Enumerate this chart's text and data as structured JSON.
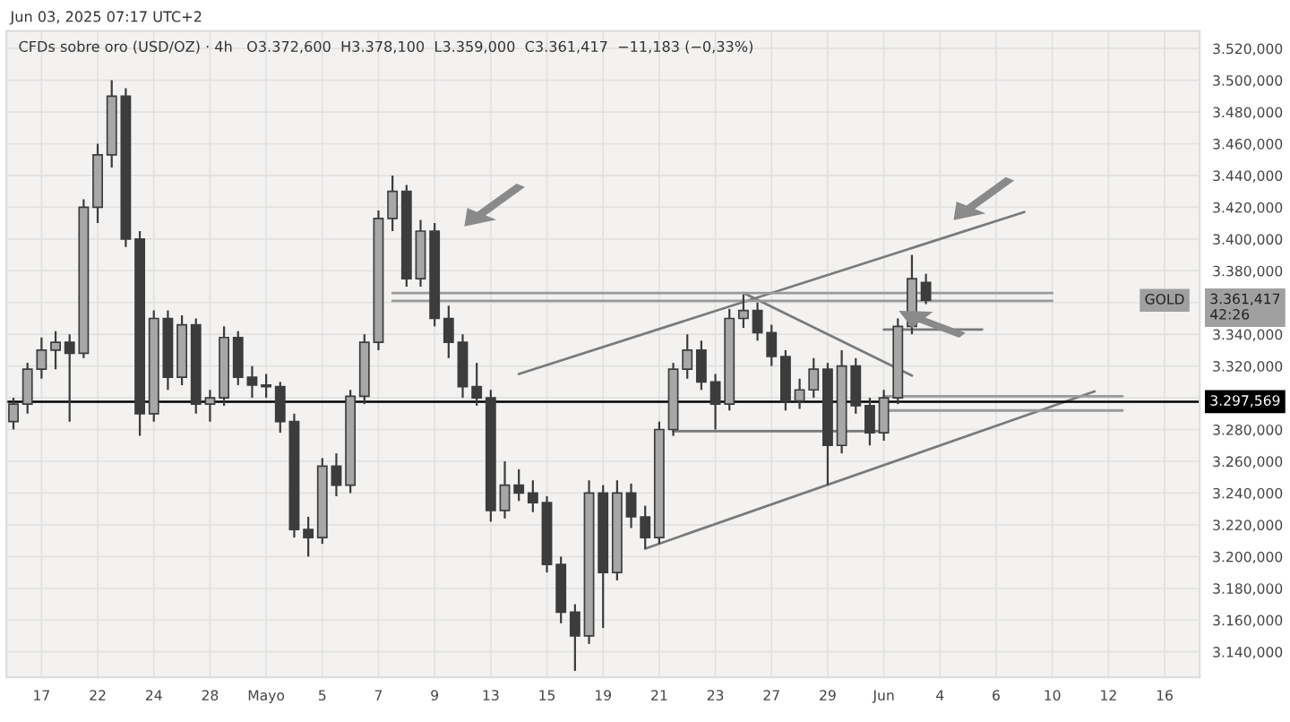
{
  "chart_data": {
    "type": "candlestick",
    "title": "CFDs sobre oro (USD/OZ) · 4h   O3.372,600  H3.378,100  L3.359,000  C3.361,417  −11,183 (−0,33%)",
    "subtitle": "Jun 03, 2025 07:17 UTC+2",
    "categories": [
      null,
      null,
      "17",
      null,
      null,
      null,
      "22",
      null,
      null,
      null,
      "24",
      null,
      null,
      null,
      "28",
      null,
      null,
      null,
      "Mayo",
      null,
      null,
      null,
      "5",
      null,
      null,
      null,
      "7",
      null,
      null,
      null,
      "9",
      null,
      null,
      null,
      "13",
      null,
      null,
      null,
      "15",
      null,
      null,
      null,
      "19",
      null,
      null,
      null,
      "21",
      null,
      null,
      null,
      "23",
      null,
      null,
      null,
      "27",
      null,
      null,
      null,
      "29",
      null,
      null,
      null,
      "Jun",
      null,
      null,
      null,
      "4",
      null,
      null,
      null,
      "6",
      null,
      null,
      null,
      "10",
      null,
      null,
      null,
      "12",
      null,
      null,
      null,
      "16",
      null,
      null
    ],
    "ohlc": [
      [
        3285,
        3300,
        3280,
        3296
      ],
      [
        3296,
        3322,
        3290,
        3318
      ],
      [
        3318,
        3338,
        3312,
        3330
      ],
      [
        3330,
        3342,
        3318,
        3335
      ],
      [
        3335,
        3340,
        3285,
        3328
      ],
      [
        3328,
        3425,
        3325,
        3420
      ],
      [
        3420,
        3460,
        3410,
        3453
      ],
      [
        3453,
        3500,
        3445,
        3490
      ],
      [
        3490,
        3495,
        3395,
        3400
      ],
      [
        3400,
        3405,
        3276,
        3290
      ],
      [
        3290,
        3355,
        3285,
        3350
      ],
      [
        3350,
        3355,
        3305,
        3313
      ],
      [
        3313,
        3352,
        3308,
        3346
      ],
      [
        3346,
        3350,
        3290,
        3296
      ],
      [
        3296,
        3305,
        3285,
        3300
      ],
      [
        3300,
        3345,
        3295,
        3338
      ],
      [
        3338,
        3342,
        3308,
        3313
      ],
      [
        3313,
        3320,
        3300,
        3308
      ],
      [
        3308,
        3315,
        3300,
        3307
      ],
      [
        3307,
        3310,
        3278,
        3285
      ],
      [
        3285,
        3290,
        3212,
        3217
      ],
      [
        3217,
        3225,
        3200,
        3212
      ],
      [
        3212,
        3262,
        3208,
        3257
      ],
      [
        3257,
        3265,
        3238,
        3245
      ],
      [
        3245,
        3305,
        3240,
        3301
      ],
      [
        3301,
        3340,
        3296,
        3335
      ],
      [
        3335,
        3418,
        3330,
        3413
      ],
      [
        3413,
        3440,
        3405,
        3430
      ],
      [
        3430,
        3434,
        3370,
        3375
      ],
      [
        3375,
        3412,
        3370,
        3405
      ],
      [
        3405,
        3410,
        3345,
        3350
      ],
      [
        3350,
        3358,
        3325,
        3335
      ],
      [
        3335,
        3340,
        3300,
        3307
      ],
      [
        3307,
        3322,
        3295,
        3300
      ],
      [
        3300,
        3305,
        3222,
        3229
      ],
      [
        3229,
        3260,
        3224,
        3245
      ],
      [
        3245,
        3255,
        3235,
        3240
      ],
      [
        3240,
        3248,
        3228,
        3234
      ],
      [
        3234,
        3238,
        3190,
        3195
      ],
      [
        3195,
        3200,
        3158,
        3165
      ],
      [
        3165,
        3170,
        3128,
        3150
      ],
      [
        3150,
        3248,
        3145,
        3240
      ],
      [
        3240,
        3245,
        3155,
        3190
      ],
      [
        3190,
        3248,
        3185,
        3240
      ],
      [
        3240,
        3246,
        3218,
        3225
      ],
      [
        3225,
        3232,
        3205,
        3212
      ],
      [
        3212,
        3285,
        3208,
        3280
      ],
      [
        3280,
        3322,
        3276,
        3318
      ],
      [
        3318,
        3340,
        3312,
        3330
      ],
      [
        3330,
        3336,
        3305,
        3310
      ],
      [
        3310,
        3315,
        3280,
        3296
      ],
      [
        3296,
        3356,
        3292,
        3350
      ],
      [
        3350,
        3365,
        3344,
        3355
      ],
      [
        3355,
        3360,
        3336,
        3341
      ],
      [
        3341,
        3346,
        3320,
        3326
      ],
      [
        3326,
        3330,
        3292,
        3298
      ],
      [
        3298,
        3312,
        3293,
        3305
      ],
      [
        3305,
        3325,
        3300,
        3318
      ],
      [
        3318,
        3322,
        3245,
        3270
      ],
      [
        3270,
        3330,
        3265,
        3320
      ],
      [
        3320,
        3325,
        3290,
        3295
      ],
      [
        3295,
        3300,
        3270,
        3278
      ],
      [
        3278,
        3305,
        3273,
        3300
      ],
      [
        3300,
        3350,
        3296,
        3345
      ],
      [
        3345,
        3390,
        3340,
        3375
      ],
      [
        3372.6,
        3378.1,
        3359,
        3361.417
      ],
      null,
      null,
      null,
      null,
      null,
      null,
      null,
      null,
      null,
      null,
      null,
      null,
      null,
      null,
      null,
      null,
      null,
      null,
      null
    ],
    "color": "#3c3c3c",
    "series": [
      {
        "type": "line",
        "color": "#7a7a7a",
        "values": [
          null,
          null,
          null,
          null,
          null,
          null,
          null,
          null,
          null,
          null,
          null,
          null,
          null,
          null,
          null,
          null,
          null,
          null,
          null,
          null,
          null,
          null,
          null,
          null,
          null,
          null,
          null,
          null,
          null,
          null,
          null,
          null,
          null,
          null,
          null,
          null,
          3315,
          null,
          null,
          null,
          null,
          null,
          null,
          null,
          null,
          null,
          null,
          null,
          null,
          null,
          null,
          null,
          null,
          null,
          null,
          null,
          null,
          null,
          null,
          null,
          null,
          null,
          null,
          null,
          null,
          null,
          null,
          null,
          null,
          null,
          null,
          null,
          3417,
          null,
          null,
          null,
          null,
          null,
          null,
          null,
          null,
          null,
          null,
          null,
          null
        ]
      },
      {
        "type": "line",
        "color": "#7a7a7a",
        "values": [
          null,
          null,
          null,
          null,
          null,
          null,
          null,
          null,
          null,
          null,
          null,
          null,
          null,
          null,
          null,
          null,
          null,
          null,
          null,
          null,
          null,
          null,
          null,
          null,
          null,
          null,
          null,
          null,
          null,
          null,
          null,
          null,
          null,
          null,
          null,
          null,
          null,
          null,
          null,
          null,
          null,
          null,
          null,
          null,
          null,
          3205,
          null,
          null,
          null,
          null,
          null,
          null,
          null,
          null,
          null,
          null,
          null,
          null,
          null,
          null,
          null,
          null,
          null,
          null,
          null,
          null,
          null,
          null,
          null,
          null,
          null,
          null,
          null,
          null,
          null,
          null,
          null,
          3304,
          null,
          null,
          null,
          null,
          null,
          null,
          null
        ]
      },
      {
        "type": "line",
        "color": "#7a7a7a",
        "values": [
          null,
          null,
          null,
          null,
          null,
          null,
          null,
          null,
          null,
          null,
          null,
          null,
          null,
          null,
          null,
          null,
          null,
          null,
          null,
          null,
          null,
          null,
          null,
          null,
          null,
          null,
          null,
          null,
          null,
          null,
          null,
          null,
          null,
          null,
          null,
          null,
          null,
          null,
          null,
          null,
          null,
          null,
          null,
          null,
          null,
          null,
          null,
          null,
          null,
          null,
          null,
          null,
          3366,
          null,
          null,
          null,
          null,
          null,
          null,
          null,
          null,
          null,
          null,
          null,
          3314,
          null,
          null,
          null,
          null,
          null,
          null,
          null,
          null,
          null,
          null,
          null,
          null,
          null,
          null,
          null,
          null,
          null,
          null,
          null,
          null
        ]
      },
      {
        "type": "line",
        "color": "#7a7a7a",
        "values": [
          null,
          null,
          null,
          null,
          null,
          null,
          null,
          null,
          null,
          null,
          null,
          null,
          null,
          null,
          null,
          null,
          null,
          null,
          null,
          null,
          null,
          null,
          null,
          null,
          null,
          null,
          null,
          null,
          null,
          null,
          null,
          null,
          null,
          null,
          null,
          null,
          null,
          null,
          null,
          null,
          null,
          null,
          null,
          null,
          null,
          null,
          null,
          3279,
          null,
          null,
          null,
          null,
          null,
          null,
          null,
          null,
          null,
          null,
          null,
          null,
          null,
          null,
          3279,
          null,
          null,
          null,
          null,
          null,
          null,
          null,
          null,
          null,
          null,
          null,
          null,
          null,
          null,
          null,
          null,
          null,
          null,
          null,
          null,
          null,
          null
        ]
      },
      {
        "type": "line",
        "color": "#7a7a7a",
        "values": [
          null,
          null,
          null,
          null,
          null,
          null,
          null,
          null,
          null,
          null,
          null,
          null,
          null,
          null,
          null,
          null,
          null,
          null,
          null,
          null,
          null,
          null,
          null,
          null,
          null,
          null,
          null,
          null,
          null,
          null,
          null,
          null,
          null,
          null,
          null,
          null,
          null,
          null,
          null,
          null,
          null,
          null,
          null,
          null,
          null,
          null,
          null,
          null,
          null,
          null,
          null,
          null,
          null,
          null,
          null,
          null,
          null,
          null,
          null,
          null,
          null,
          null,
          3343,
          null,
          null,
          null,
          null,
          null,
          null,
          3343,
          null,
          null,
          null,
          null,
          null,
          null,
          null,
          null,
          null,
          null,
          null,
          null,
          null,
          null,
          null
        ]
      },
      {
        "type": "line",
        "color": "#9a9a9a",
        "values": [
          null,
          null,
          null,
          null,
          null,
          null,
          null,
          null,
          null,
          null,
          null,
          null,
          null,
          null,
          null,
          null,
          null,
          null,
          null,
          null,
          null,
          null,
          null,
          null,
          null,
          null,
          null,
          3366,
          null,
          null,
          null,
          null,
          null,
          null,
          null,
          null,
          null,
          null,
          null,
          null,
          null,
          null,
          null,
          null,
          null,
          null,
          null,
          null,
          null,
          null,
          null,
          null,
          null,
          null,
          null,
          null,
          null,
          null,
          null,
          null,
          null,
          null,
          null,
          null,
          null,
          null,
          null,
          null,
          null,
          null,
          null,
          null,
          null,
          null,
          3366,
          null,
          null,
          null,
          null,
          null,
          null,
          null,
          null,
          null,
          null
        ]
      },
      {
        "type": "line",
        "color": "#9a9a9a",
        "values": [
          null,
          null,
          null,
          null,
          null,
          null,
          null,
          null,
          null,
          null,
          null,
          null,
          null,
          null,
          null,
          null,
          null,
          null,
          null,
          null,
          null,
          null,
          null,
          null,
          null,
          null,
          null,
          3361,
          null,
          null,
          null,
          null,
          null,
          null,
          null,
          null,
          null,
          null,
          null,
          null,
          null,
          null,
          null,
          null,
          null,
          null,
          null,
          null,
          null,
          null,
          null,
          null,
          null,
          null,
          null,
          null,
          null,
          null,
          null,
          null,
          null,
          null,
          null,
          null,
          null,
          null,
          null,
          null,
          null,
          null,
          null,
          null,
          null,
          null,
          3361,
          null,
          null,
          null,
          null,
          null,
          null,
          null,
          null,
          null,
          null
        ]
      },
      {
        "type": "line",
        "color": "#9a9a9a",
        "values": [
          null,
          null,
          null,
          null,
          null,
          null,
          null,
          null,
          null,
          null,
          null,
          null,
          null,
          null,
          null,
          null,
          null,
          null,
          null,
          null,
          null,
          null,
          null,
          null,
          null,
          null,
          null,
          null,
          null,
          null,
          null,
          null,
          null,
          null,
          null,
          null,
          null,
          null,
          null,
          null,
          null,
          null,
          null,
          null,
          null,
          null,
          null,
          null,
          null,
          null,
          null,
          null,
          null,
          null,
          null,
          null,
          null,
          null,
          null,
          null,
          null,
          null,
          3301,
          null,
          null,
          null,
          null,
          null,
          null,
          null,
          null,
          null,
          null,
          null,
          null,
          null,
          null,
          null,
          null,
          3301,
          null,
          null,
          null,
          null,
          null
        ]
      },
      {
        "type": "line",
        "color": "#9a9a9a",
        "values": [
          null,
          null,
          null,
          null,
          null,
          null,
          null,
          null,
          null,
          null,
          null,
          null,
          null,
          null,
          null,
          null,
          null,
          null,
          null,
          null,
          null,
          null,
          null,
          null,
          null,
          null,
          null,
          null,
          null,
          null,
          null,
          null,
          null,
          null,
          null,
          null,
          null,
          null,
          null,
          null,
          null,
          null,
          null,
          null,
          null,
          null,
          null,
          null,
          null,
          null,
          null,
          null,
          null,
          null,
          null,
          null,
          null,
          null,
          null,
          null,
          null,
          null,
          3292,
          null,
          null,
          null,
          null,
          null,
          null,
          null,
          null,
          null,
          null,
          null,
          null,
          null,
          null,
          null,
          null,
          3292,
          null,
          null,
          null,
          null,
          null
        ]
      }
    ],
    "ref_lines": [
      {
        "axis": "y",
        "value": 3297.569,
        "label": "3.297,569",
        "color": "#000000",
        "line_style": "solid"
      }
    ],
    "annotations": [
      "GOLD",
      "3.361,417\n42:26"
    ],
    "ylim": [
      3124,
      3531
    ],
    "yticks": [
      {
        "value": 3140,
        "label": "3.140,000"
      },
      {
        "value": 3160,
        "label": "3.160,000"
      },
      {
        "value": 3180,
        "label": "3.180,000"
      },
      {
        "value": 3200,
        "label": "3.200,000"
      },
      {
        "value": 3220,
        "label": "3.220,000"
      },
      {
        "value": 3240,
        "label": "3.240,000"
      },
      {
        "value": 3260,
        "label": "3.260,000"
      },
      {
        "value": 3280,
        "label": "3.280,000"
      },
      {
        "value": 3300,
        "label": null
      },
      {
        "value": 3320,
        "label": "3.320,000"
      },
      {
        "value": 3340,
        "label": "3.340,000"
      },
      {
        "value": 3360,
        "label": null
      },
      {
        "value": 3380,
        "label": "3.380,000"
      },
      {
        "value": 3400,
        "label": "3.400,000"
      },
      {
        "value": 3420,
        "label": "3.420,000"
      },
      {
        "value": 3440,
        "label": "3.440,000"
      },
      {
        "value": 3460,
        "label": "3.460,000"
      },
      {
        "value": 3480,
        "label": "3.480,000"
      },
      {
        "value": 3500,
        "label": "3.500,000"
      },
      {
        "value": 3520,
        "label": "3.520,000"
      }
    ],
    "grid": true,
    "legend": false
  }
}
